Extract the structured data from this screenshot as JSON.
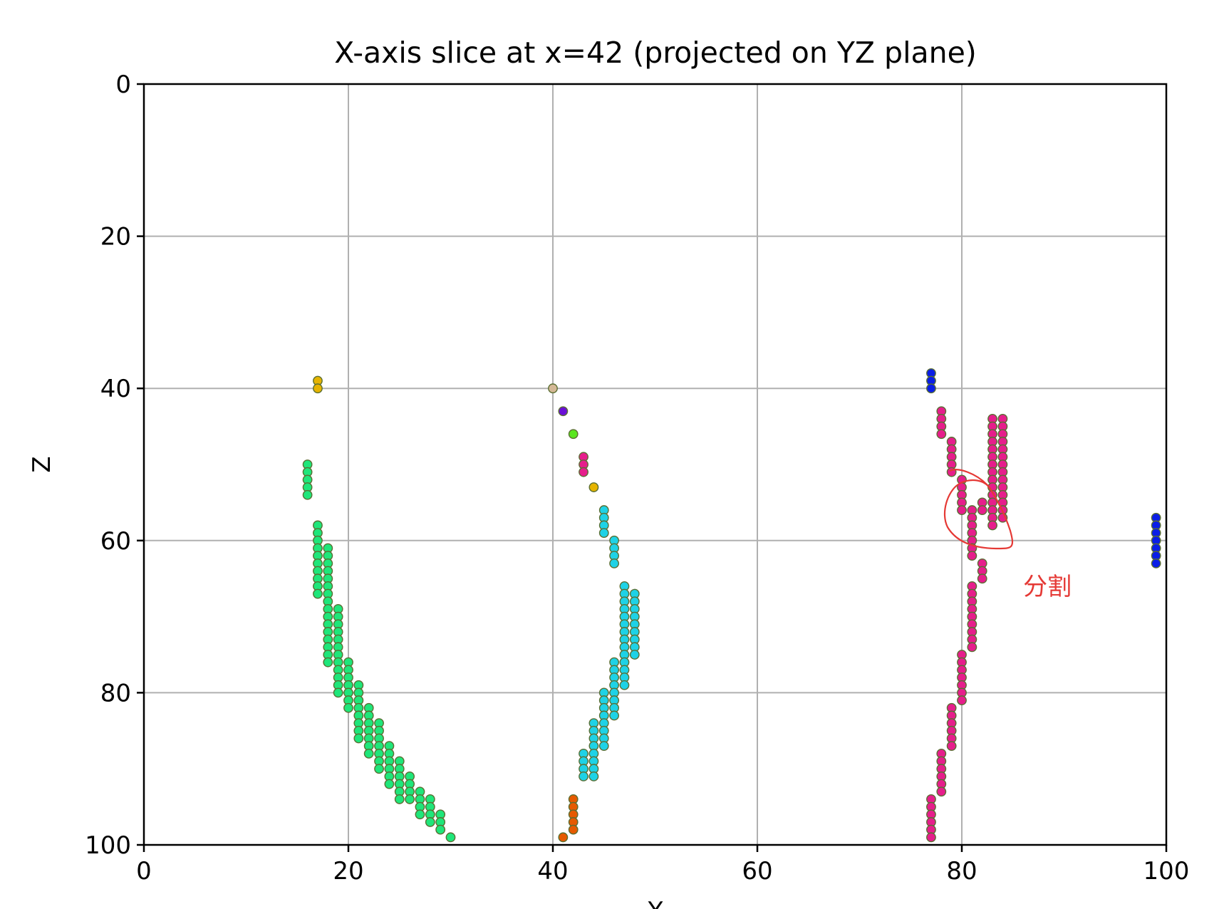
{
  "chart_data": {
    "type": "scatter",
    "title": "X-axis slice at x=42 (projected on YZ plane)",
    "xlabel": "Y",
    "ylabel": "Z",
    "xlim": [
      0,
      100
    ],
    "ylim": [
      100,
      0
    ],
    "y_axis_inverted": true,
    "grid": true,
    "x_ticks": [
      "0",
      "20",
      "40",
      "60",
      "80",
      "100"
    ],
    "y_ticks": [
      "0",
      "20",
      "40",
      "60",
      "80",
      "100"
    ],
    "point_edge_color": "#5a6e32",
    "series": [
      {
        "color": "#e6b400",
        "points": [
          [
            17,
            39
          ],
          [
            17,
            40
          ]
        ]
      },
      {
        "color": "#1ee67a",
        "points": [
          [
            16,
            50
          ],
          [
            16,
            51
          ],
          [
            16,
            52
          ],
          [
            16,
            53
          ],
          [
            16,
            54
          ],
          [
            17,
            58
          ],
          [
            17,
            59
          ],
          [
            17,
            60
          ],
          [
            17,
            61
          ],
          [
            17,
            62
          ],
          [
            17,
            63
          ],
          [
            17,
            64
          ],
          [
            17,
            65
          ],
          [
            17,
            66
          ],
          [
            17,
            67
          ],
          [
            18,
            61
          ],
          [
            18,
            62
          ],
          [
            18,
            63
          ],
          [
            18,
            64
          ],
          [
            18,
            65
          ],
          [
            18,
            66
          ],
          [
            18,
            67
          ],
          [
            18,
            68
          ],
          [
            18,
            69
          ],
          [
            18,
            70
          ],
          [
            18,
            71
          ],
          [
            18,
            72
          ],
          [
            18,
            73
          ],
          [
            18,
            74
          ],
          [
            18,
            75
          ],
          [
            18,
            76
          ],
          [
            19,
            69
          ],
          [
            19,
            70
          ],
          [
            19,
            71
          ],
          [
            19,
            72
          ],
          [
            19,
            73
          ],
          [
            19,
            74
          ],
          [
            19,
            75
          ],
          [
            19,
            76
          ],
          [
            19,
            77
          ],
          [
            19,
            78
          ],
          [
            19,
            79
          ],
          [
            19,
            80
          ],
          [
            20,
            76
          ],
          [
            20,
            77
          ],
          [
            20,
            78
          ],
          [
            20,
            79
          ],
          [
            20,
            80
          ],
          [
            20,
            81
          ],
          [
            20,
            82
          ],
          [
            21,
            79
          ],
          [
            21,
            80
          ],
          [
            21,
            81
          ],
          [
            21,
            82
          ],
          [
            21,
            83
          ],
          [
            21,
            84
          ],
          [
            21,
            85
          ],
          [
            21,
            86
          ],
          [
            22,
            82
          ],
          [
            22,
            83
          ],
          [
            22,
            84
          ],
          [
            22,
            85
          ],
          [
            22,
            86
          ],
          [
            22,
            87
          ],
          [
            22,
            88
          ],
          [
            23,
            84
          ],
          [
            23,
            85
          ],
          [
            23,
            86
          ],
          [
            23,
            87
          ],
          [
            23,
            88
          ],
          [
            23,
            89
          ],
          [
            23,
            90
          ],
          [
            24,
            87
          ],
          [
            24,
            88
          ],
          [
            24,
            89
          ],
          [
            24,
            90
          ],
          [
            24,
            91
          ],
          [
            24,
            92
          ],
          [
            25,
            89
          ],
          [
            25,
            90
          ],
          [
            25,
            91
          ],
          [
            25,
            92
          ],
          [
            25,
            93
          ],
          [
            25,
            94
          ],
          [
            26,
            91
          ],
          [
            26,
            92
          ],
          [
            26,
            93
          ],
          [
            26,
            94
          ],
          [
            27,
            93
          ],
          [
            27,
            94
          ],
          [
            27,
            95
          ],
          [
            27,
            96
          ],
          [
            28,
            94
          ],
          [
            28,
            95
          ],
          [
            28,
            96
          ],
          [
            28,
            97
          ],
          [
            29,
            96
          ],
          [
            29,
            97
          ],
          [
            29,
            98
          ],
          [
            30,
            99
          ]
        ]
      },
      {
        "color": "#d4b896",
        "points": [
          [
            40,
            40
          ]
        ]
      },
      {
        "color": "#6a0fd6",
        "points": [
          [
            41,
            43
          ]
        ]
      },
      {
        "color": "#5ae61e",
        "points": [
          [
            42,
            46
          ]
        ]
      },
      {
        "color": "#e61e8c",
        "points": [
          [
            43,
            49
          ],
          [
            43,
            50
          ],
          [
            43,
            51
          ]
        ]
      },
      {
        "color": "#e6b400",
        "points": [
          [
            44,
            53
          ]
        ]
      },
      {
        "color": "#1ed2e6",
        "points": [
          [
            45,
            56
          ],
          [
            45,
            57
          ],
          [
            45,
            58
          ],
          [
            45,
            59
          ],
          [
            46,
            60
          ],
          [
            46,
            61
          ],
          [
            46,
            62
          ],
          [
            46,
            63
          ],
          [
            47,
            66
          ],
          [
            47,
            67
          ],
          [
            47,
            68
          ],
          [
            47,
            69
          ],
          [
            47,
            70
          ],
          [
            47,
            71
          ],
          [
            47,
            72
          ],
          [
            47,
            73
          ],
          [
            47,
            74
          ],
          [
            47,
            75
          ],
          [
            47,
            76
          ],
          [
            47,
            77
          ],
          [
            47,
            78
          ],
          [
            47,
            79
          ],
          [
            48,
            67
          ],
          [
            48,
            68
          ],
          [
            48,
            69
          ],
          [
            48,
            70
          ],
          [
            48,
            71
          ],
          [
            48,
            72
          ],
          [
            48,
            73
          ],
          [
            48,
            74
          ],
          [
            48,
            75
          ],
          [
            46,
            76
          ],
          [
            46,
            77
          ],
          [
            46,
            78
          ],
          [
            46,
            79
          ],
          [
            46,
            80
          ],
          [
            46,
            81
          ],
          [
            46,
            82
          ],
          [
            46,
            83
          ],
          [
            45,
            80
          ],
          [
            45,
            81
          ],
          [
            45,
            82
          ],
          [
            45,
            83
          ],
          [
            45,
            84
          ],
          [
            45,
            85
          ],
          [
            45,
            86
          ],
          [
            45,
            87
          ],
          [
            44,
            84
          ],
          [
            44,
            85
          ],
          [
            44,
            86
          ],
          [
            44,
            87
          ],
          [
            44,
            88
          ],
          [
            44,
            89
          ],
          [
            44,
            90
          ],
          [
            44,
            91
          ],
          [
            43,
            88
          ],
          [
            43,
            89
          ],
          [
            43,
            90
          ],
          [
            43,
            91
          ]
        ]
      },
      {
        "color": "#e65a00",
        "points": [
          [
            42,
            94
          ],
          [
            42,
            95
          ],
          [
            42,
            96
          ],
          [
            42,
            97
          ],
          [
            42,
            98
          ],
          [
            41,
            99
          ]
        ]
      },
      {
        "color": "#0a1ee6",
        "points": [
          [
            77,
            38
          ],
          [
            77,
            39
          ],
          [
            77,
            40
          ],
          [
            99,
            57
          ],
          [
            99,
            58
          ],
          [
            99,
            59
          ],
          [
            99,
            60
          ],
          [
            99,
            61
          ],
          [
            99,
            62
          ],
          [
            99,
            63
          ]
        ]
      },
      {
        "color": "#e61e8c",
        "points": [
          [
            78,
            43
          ],
          [
            78,
            44
          ],
          [
            78,
            45
          ],
          [
            78,
            46
          ],
          [
            79,
            47
          ],
          [
            79,
            48
          ],
          [
            79,
            49
          ],
          [
            79,
            50
          ],
          [
            79,
            51
          ],
          [
            80,
            52
          ],
          [
            80,
            53
          ],
          [
            80,
            54
          ],
          [
            80,
            55
          ],
          [
            80,
            56
          ],
          [
            81,
            56
          ],
          [
            81,
            57
          ],
          [
            81,
            58
          ],
          [
            81,
            59
          ],
          [
            81,
            60
          ],
          [
            81,
            61
          ],
          [
            81,
            62
          ],
          [
            82,
            55
          ],
          [
            82,
            56
          ],
          [
            82,
            63
          ],
          [
            82,
            64
          ],
          [
            82,
            65
          ],
          [
            83,
            44
          ],
          [
            83,
            45
          ],
          [
            83,
            46
          ],
          [
            83,
            47
          ],
          [
            83,
            48
          ],
          [
            83,
            49
          ],
          [
            83,
            50
          ],
          [
            83,
            51
          ],
          [
            83,
            52
          ],
          [
            83,
            53
          ],
          [
            83,
            54
          ],
          [
            83,
            55
          ],
          [
            83,
            56
          ],
          [
            83,
            57
          ],
          [
            83,
            58
          ],
          [
            84,
            44
          ],
          [
            84,
            45
          ],
          [
            84,
            46
          ],
          [
            84,
            47
          ],
          [
            84,
            48
          ],
          [
            84,
            49
          ],
          [
            84,
            50
          ],
          [
            84,
            51
          ],
          [
            84,
            52
          ],
          [
            84,
            53
          ],
          [
            84,
            54
          ],
          [
            84,
            55
          ],
          [
            84,
            56
          ],
          [
            84,
            57
          ],
          [
            81,
            66
          ],
          [
            81,
            67
          ],
          [
            81,
            68
          ],
          [
            81,
            69
          ],
          [
            81,
            70
          ],
          [
            81,
            71
          ],
          [
            81,
            72
          ],
          [
            81,
            73
          ],
          [
            81,
            74
          ],
          [
            80,
            75
          ],
          [
            80,
            76
          ],
          [
            80,
            77
          ],
          [
            80,
            78
          ],
          [
            80,
            79
          ],
          [
            80,
            80
          ],
          [
            80,
            81
          ],
          [
            79,
            82
          ],
          [
            79,
            83
          ],
          [
            79,
            84
          ],
          [
            79,
            85
          ],
          [
            79,
            86
          ],
          [
            79,
            87
          ],
          [
            78,
            88
          ],
          [
            78,
            89
          ],
          [
            78,
            90
          ],
          [
            78,
            91
          ],
          [
            78,
            92
          ],
          [
            78,
            93
          ],
          [
            77,
            94
          ],
          [
            77,
            95
          ],
          [
            77,
            96
          ],
          [
            77,
            97
          ],
          [
            77,
            98
          ],
          [
            77,
            99
          ]
        ]
      }
    ],
    "annotations": [
      {
        "text": "分割",
        "color": "#e53935",
        "x": 86,
        "z": 66
      }
    ]
  }
}
